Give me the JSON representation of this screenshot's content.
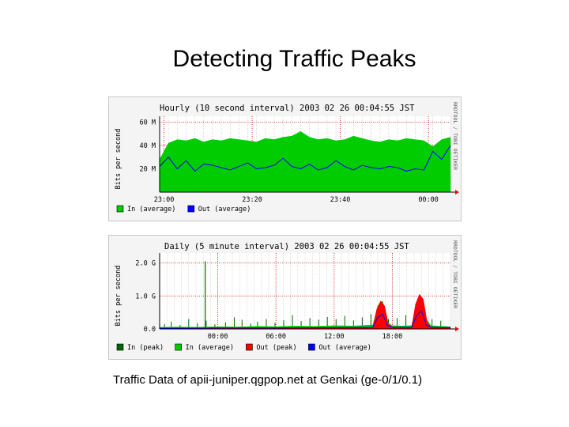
{
  "slide": {
    "title": "Detecting Traffic Peaks",
    "caption": "Traffic Data of apii-juniper.qgpop.net at Genkai (ge-0/1/0.1)"
  },
  "colors": {
    "in_average": "#00cc00",
    "in_peak": "#006600",
    "out_average": "#0000ff",
    "out_peak": "#ff0000",
    "grid": "#cc0000",
    "panel_bg": "#f4f4f4",
    "plot_bg": "#ffffff"
  },
  "chart_data": [
    {
      "type": "area",
      "title": "Hourly (10 second interval) 2003 02 26 00:04:55 JST",
      "side_label": "RRDTOOL / TOBI OETIKER",
      "ylabel": "Bits per second",
      "y_ticks": [
        "60 M",
        "40 M",
        "20 M"
      ],
      "y_tick_values": [
        60,
        40,
        20
      ],
      "y_unit": "M",
      "ylim": [
        0,
        65
      ],
      "x_ticks": [
        "23:00",
        "23:20",
        "23:40",
        "00:00"
      ],
      "x_tick_positions_min": [
        0,
        20,
        40,
        60
      ],
      "xlim_min": [
        -1,
        65
      ],
      "legend": [
        "In (average)",
        "Out (average)"
      ],
      "grid": true,
      "series": [
        {
          "name": "In (average)",
          "style": "area",
          "x_min": [
            -1,
            1,
            3,
            5,
            7,
            9,
            11,
            13,
            15,
            17,
            19,
            21,
            23,
            25,
            27,
            29,
            31,
            33,
            35,
            37,
            39,
            41,
            43,
            45,
            47,
            49,
            51,
            53,
            55,
            57,
            59,
            61,
            63,
            65
          ],
          "values": [
            28,
            42,
            45,
            44,
            46,
            43,
            45,
            44,
            46,
            45,
            44,
            43,
            46,
            45,
            47,
            48,
            52,
            47,
            45,
            46,
            44,
            45,
            48,
            46,
            44,
            43,
            45,
            44,
            46,
            45,
            44,
            39,
            45,
            47
          ]
        },
        {
          "name": "Out (average)",
          "style": "line",
          "x_min": [
            -1,
            1,
            3,
            5,
            7,
            9,
            11,
            13,
            15,
            17,
            19,
            21,
            23,
            25,
            27,
            29,
            31,
            33,
            35,
            37,
            39,
            41,
            43,
            45,
            47,
            49,
            51,
            53,
            55,
            57,
            59,
            61,
            63,
            65
          ],
          "values": [
            22,
            30,
            20,
            27,
            18,
            24,
            23,
            21,
            19,
            22,
            25,
            20,
            21,
            23,
            29,
            22,
            20,
            24,
            19,
            21,
            27,
            22,
            19,
            23,
            21,
            20,
            22,
            21,
            18,
            20,
            19,
            35,
            28,
            40
          ]
        }
      ]
    },
    {
      "type": "area",
      "title": "Daily (5 minute interval) 2003 02 26 00:04:55 JST",
      "side_label": "RRDTOOL / TOBI OETIKER",
      "ylabel": "Bits per second",
      "y_ticks": [
        "2.0 G",
        "1.0 G",
        "0.0"
      ],
      "y_tick_values": [
        2.0,
        1.0,
        0.0
      ],
      "y_unit": "G",
      "ylim": [
        0,
        2.3
      ],
      "x_ticks": [
        "00:00",
        "06:00",
        "12:00",
        "18:00"
      ],
      "x_tick_positions_hr": [
        0,
        6,
        12,
        18
      ],
      "xlim_hr": [
        -6,
        24
      ],
      "legend": [
        "In (peak)",
        "In (average)",
        "Out (peak)",
        "Out (average)"
      ],
      "grid": true,
      "series": [
        {
          "name": "In (peak)",
          "style": "spikes",
          "x_hr": [
            -5.5,
            -4.8,
            -3.9,
            -3.0,
            -2.1,
            -1.2,
            -0.3,
            0.8,
            1.7,
            2.5,
            3.4,
            4.1,
            5.0,
            5.9,
            6.8,
            7.7,
            8.6,
            9.5,
            10.4,
            11.3,
            12.2,
            13.1,
            14.0,
            14.9,
            15.8,
            16.7,
            17.6,
            18.5,
            19.4,
            20.3,
            21.2,
            22.1,
            23.0
          ],
          "values": [
            0.15,
            0.22,
            0.12,
            0.3,
            0.18,
            0.25,
            0.14,
            0.2,
            0.35,
            0.28,
            0.16,
            0.22,
            0.3,
            0.19,
            0.26,
            0.42,
            0.24,
            0.33,
            0.28,
            0.36,
            0.3,
            0.4,
            0.26,
            0.35,
            0.45,
            0.38,
            0.3,
            0.33,
            0.42,
            0.28,
            0.35,
            0.3,
            0.25
          ]
        },
        {
          "name": "In (average)",
          "style": "area",
          "x_hr": [
            -6,
            -4,
            -2,
            0,
            2,
            4,
            6,
            8,
            10,
            12,
            14,
            16,
            16.5,
            17,
            17.5,
            18,
            19,
            20,
            20.5,
            21,
            21.5,
            22,
            23,
            24
          ],
          "values": [
            0.05,
            0.06,
            0.05,
            0.07,
            0.06,
            0.08,
            0.07,
            0.09,
            0.08,
            0.1,
            0.09,
            0.12,
            0.7,
            0.85,
            0.2,
            0.1,
            0.09,
            0.1,
            0.8,
            0.95,
            0.3,
            0.1,
            0.08,
            0.07
          ]
        },
        {
          "name": "Out (peak)",
          "style": "area",
          "x_hr": [
            -6,
            0,
            6,
            12,
            16,
            16.4,
            16.8,
            17.2,
            17.6,
            18,
            20,
            20.4,
            20.8,
            21.2,
            21.6,
            22,
            24
          ],
          "values": [
            0.02,
            0.03,
            0.03,
            0.04,
            0.05,
            0.6,
            0.85,
            0.7,
            0.15,
            0.05,
            0.05,
            0.75,
            1.05,
            0.9,
            0.2,
            0.05,
            0.04
          ]
        },
        {
          "name": "Out (average)",
          "style": "line",
          "x_hr": [
            -6,
            0,
            6,
            12,
            16,
            16.5,
            17,
            17.5,
            18,
            20,
            20.5,
            21,
            21.5,
            22,
            24
          ],
          "values": [
            0.02,
            0.03,
            0.03,
            0.04,
            0.05,
            0.35,
            0.45,
            0.1,
            0.05,
            0.05,
            0.4,
            0.55,
            0.12,
            0.05,
            0.04
          ]
        },
        {
          "name": "Spike",
          "style": "single",
          "x_hr": [
            -1.3
          ],
          "values": [
            2.05
          ]
        }
      ]
    }
  ]
}
